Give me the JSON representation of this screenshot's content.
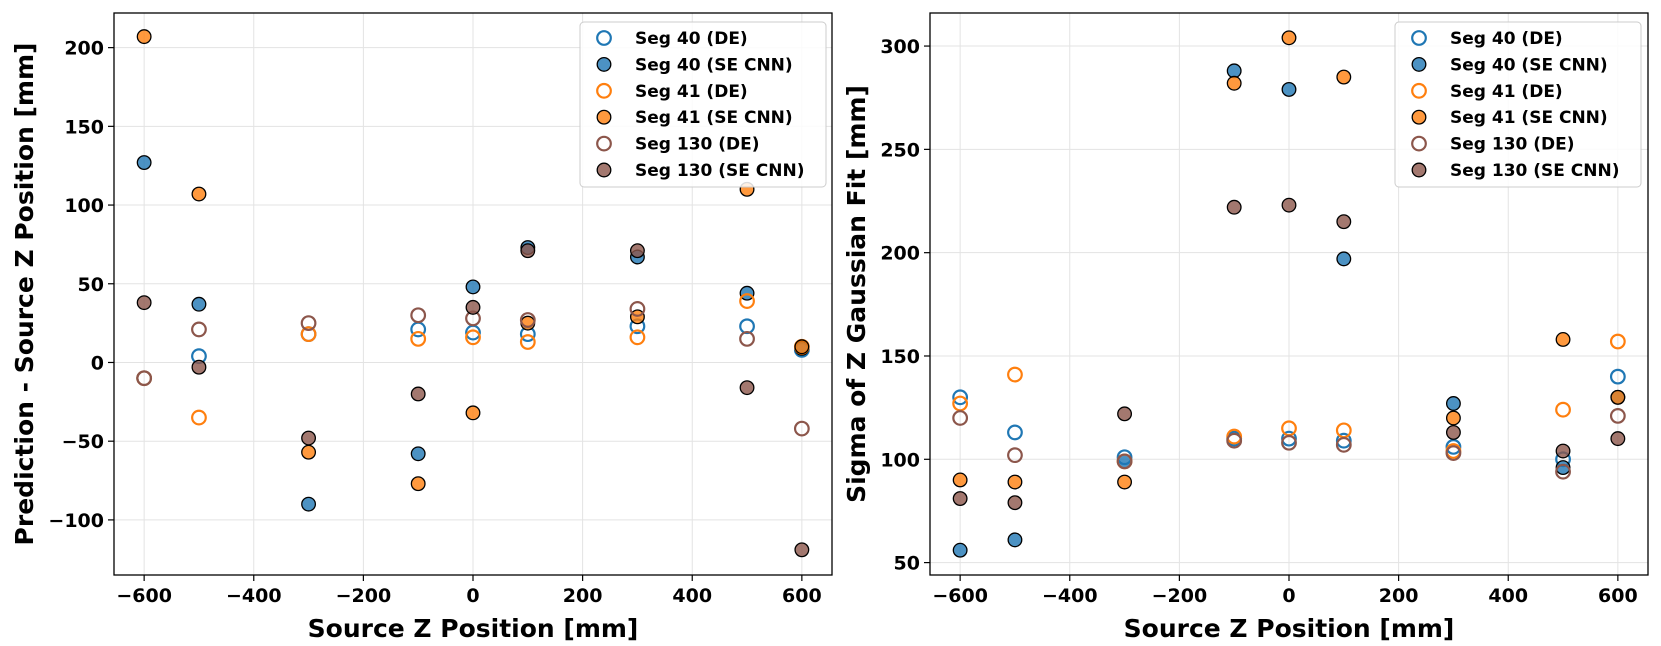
{
  "chart_data": [
    {
      "type": "scatter",
      "title": "",
      "xlabel": "Source Z Position [mm]",
      "ylabel": "Prediction - Source Z Position [mm]",
      "xlim": [
        -655,
        655
      ],
      "ylim": [
        -135,
        222
      ],
      "xticks": [
        -600,
        -400,
        -200,
        0,
        200,
        400,
        600
      ],
      "yticks": [
        -100,
        -50,
        0,
        50,
        100,
        150,
        200
      ],
      "grid": true,
      "legend_position": "top-right",
      "series": [
        {
          "name": "Seg 40 (DE)",
          "color": "#1f77b4",
          "filled": false,
          "x": [
            -600,
            -500,
            -300,
            -100,
            0,
            100,
            300,
            500,
            600
          ],
          "y": [
            -10,
            4,
            18,
            21,
            19,
            18,
            23,
            23,
            8
          ]
        },
        {
          "name": "Seg 40 (SE CNN)",
          "color": "#1f77b4",
          "filled": true,
          "x": [
            -600,
            -500,
            -300,
            -100,
            0,
            100,
            300,
            500,
            600
          ],
          "y": [
            127,
            37,
            -90,
            -58,
            48,
            73,
            67,
            44,
            9
          ]
        },
        {
          "name": "Seg 41 (DE)",
          "color": "#ff7f0e",
          "filled": false,
          "x": [
            -600,
            -500,
            -300,
            -100,
            0,
            100,
            300,
            500,
            600
          ],
          "y": [
            -10,
            -35,
            18,
            15,
            16,
            13,
            16,
            39,
            10
          ]
        },
        {
          "name": "Seg 41 (SE CNN)",
          "color": "#ff7f0e",
          "filled": true,
          "x": [
            -600,
            -500,
            -300,
            -100,
            0,
            100,
            300,
            500,
            600
          ],
          "y": [
            207,
            107,
            -57,
            -77,
            -32,
            25,
            29,
            110,
            10
          ]
        },
        {
          "name": "Seg 130 (DE)",
          "color": "#8c564b",
          "filled": false,
          "x": [
            -600,
            -500,
            -300,
            -100,
            0,
            100,
            300,
            500,
            600
          ],
          "y": [
            -10,
            21,
            25,
            30,
            28,
            27,
            34,
            15,
            -42
          ]
        },
        {
          "name": "Seg 130 (SE CNN)",
          "color": "#8c564b",
          "filled": true,
          "x": [
            -600,
            -500,
            -300,
            -100,
            0,
            100,
            300,
            500,
            600
          ],
          "y": [
            38,
            -3,
            -48,
            -20,
            35,
            71,
            71,
            -16,
            -119
          ]
        }
      ]
    },
    {
      "type": "scatter",
      "title": "",
      "xlabel": "Source Z Position [mm]",
      "ylabel": "Sigma of Z Gaussian Fit [mm]",
      "xlim": [
        -655,
        655
      ],
      "ylim": [
        44,
        316
      ],
      "xticks": [
        -600,
        -400,
        -200,
        0,
        200,
        400,
        600
      ],
      "yticks": [
        50,
        100,
        150,
        200,
        250,
        300
      ],
      "grid": true,
      "legend_position": "top-right",
      "series": [
        {
          "name": "Seg 40 (DE)",
          "color": "#1f77b4",
          "filled": false,
          "x": [
            -600,
            -500,
            -300,
            -100,
            0,
            100,
            300,
            500,
            600
          ],
          "y": [
            130,
            113,
            101,
            110,
            110,
            109,
            106,
            100,
            140
          ]
        },
        {
          "name": "Seg 40 (SE CNN)",
          "color": "#1f77b4",
          "filled": true,
          "x": [
            -600,
            -500,
            -300,
            -100,
            0,
            100,
            300,
            500,
            600
          ],
          "y": [
            56,
            61,
            99,
            288,
            279,
            197,
            127,
            96,
            130
          ]
        },
        {
          "name": "Seg 41 (DE)",
          "color": "#ff7f0e",
          "filled": false,
          "x": [
            -600,
            -500,
            -300,
            -100,
            0,
            100,
            300,
            500,
            600
          ],
          "y": [
            127,
            141,
            99,
            111,
            115,
            114,
            104,
            124,
            157
          ]
        },
        {
          "name": "Seg 41 (SE CNN)",
          "color": "#ff7f0e",
          "filled": true,
          "x": [
            -600,
            -500,
            -300,
            -100,
            0,
            100,
            300,
            500,
            600
          ],
          "y": [
            90,
            89,
            89,
            282,
            304,
            285,
            120,
            158,
            130
          ]
        },
        {
          "name": "Seg 130 (DE)",
          "color": "#8c564b",
          "filled": false,
          "x": [
            -600,
            -500,
            -300,
            -100,
            0,
            100,
            300,
            500,
            600
          ],
          "y": [
            120,
            102,
            99,
            109,
            108,
            107,
            103,
            94,
            121
          ]
        },
        {
          "name": "Seg 130 (SE CNN)",
          "color": "#8c564b",
          "filled": true,
          "x": [
            -600,
            -500,
            -300,
            -100,
            0,
            100,
            300,
            500,
            600
          ],
          "y": [
            81,
            79,
            122,
            222,
            223,
            215,
            113,
            104,
            110
          ]
        }
      ]
    }
  ]
}
